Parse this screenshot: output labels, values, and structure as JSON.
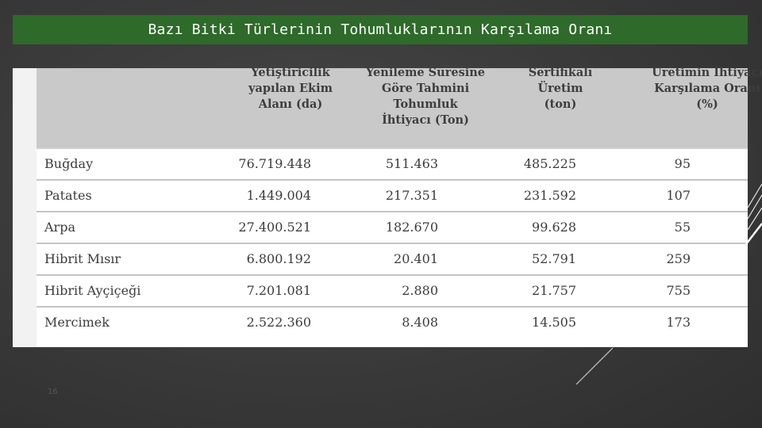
{
  "title": "Bazı Bitki Türlerinin Tohumluklarının Karşılama Oranı",
  "table": {
    "headers": {
      "col1": [
        "Yetiştiricilik",
        "yapılan Ekim",
        "Alanı (da)"
      ],
      "col2": [
        "Yenileme Süresine",
        "Göre Tahmini",
        "Tohumluk",
        "İhtiyacı (Ton)"
      ],
      "col3": [
        "Sertifikalı",
        "Üretim",
        "(ton)"
      ],
      "col4": [
        "Üretimin İhtiyacı",
        "Karşılama Oranı",
        "(%)"
      ]
    },
    "rows": [
      {
        "name": "Buğday",
        "area": "76.719.448",
        "need": "511.463",
        "production": "485.225",
        "ratio": "95"
      },
      {
        "name": "Patates",
        "area": "1.449.004",
        "need": "217.351",
        "production": "231.592",
        "ratio": "107"
      },
      {
        "name": "Arpa",
        "area": "27.400.521",
        "need": "182.670",
        "production": "99.628",
        "ratio": "55"
      },
      {
        "name": "Hibrit Mısır",
        "area": "6.800.192",
        "need": "20.401",
        "production": "52.791",
        "ratio": "259"
      },
      {
        "name": "Hibrit Ayçiçeği",
        "area": "7.201.081",
        "need": "2.880",
        "production": "21.757",
        "ratio": "755"
      },
      {
        "name": "Mercimek",
        "area": "2.522.360",
        "need": "8.408",
        "production": "14.505",
        "ratio": "173"
      }
    ]
  },
  "page_number": "16",
  "colors": {
    "title_bar": "#2e6a2a",
    "header_bg": "#c9c9c9",
    "slide_bg": "#3b3b3b"
  }
}
